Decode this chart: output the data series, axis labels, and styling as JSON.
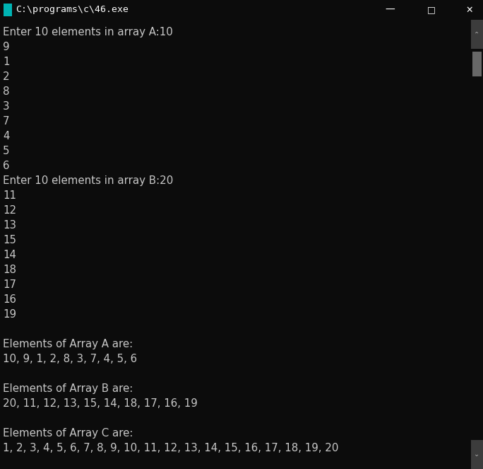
{
  "title_bar_text": "C:\\programs\\c\\46.exe",
  "bg_color": "#0C0C0C",
  "title_bar_bg": "#2D2D2D",
  "title_bar_text_color": "#FFFFFF",
  "text_color": "#C8C8C8",
  "scrollbar_bg": "#3C3C3C",
  "scrollbar_thumb": "#686868",
  "scrollbar_arrow_bg": "#3C3C3C",
  "font_size": 10.8,
  "title_font_size": 9.5,
  "icon_color": "#00B4B4",
  "lines": [
    "Enter 10 elements in array A:10",
    "9",
    "1",
    "2",
    "8",
    "3",
    "7",
    "4",
    "5",
    "6",
    "Enter 10 elements in array B:20",
    "11",
    "12",
    "13",
    "15",
    "14",
    "18",
    "17",
    "16",
    "19",
    "",
    "Elements of Array A are:",
    "10, 9, 1, 2, 8, 3, 7, 4, 5, 6",
    "",
    "Elements of Array B are:",
    "20, 11, 12, 13, 15, 14, 18, 17, 16, 19",
    "",
    "Elements of Array C are:",
    "1, 2, 3, 4, 5, 6, 7, 8, 9, 10, 11, 12, 13, 14, 15, 16, 17, 18, 19, 20"
  ]
}
